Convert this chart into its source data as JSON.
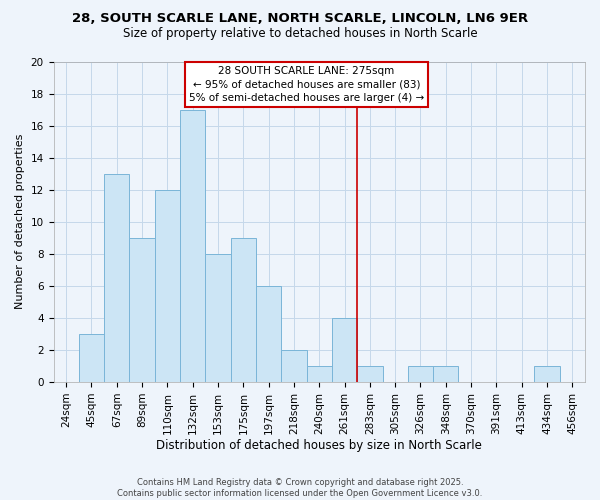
{
  "title_line1": "28, SOUTH SCARLE LANE, NORTH SCARLE, LINCOLN, LN6 9ER",
  "title_line2": "Size of property relative to detached houses in North Scarle",
  "xlabel": "Distribution of detached houses by size in North Scarle",
  "ylabel": "Number of detached properties",
  "bin_labels": [
    "24sqm",
    "45sqm",
    "67sqm",
    "89sqm",
    "110sqm",
    "132sqm",
    "153sqm",
    "175sqm",
    "197sqm",
    "218sqm",
    "240sqm",
    "261sqm",
    "283sqm",
    "305sqm",
    "326sqm",
    "348sqm",
    "370sqm",
    "391sqm",
    "413sqm",
    "434sqm",
    "456sqm"
  ],
  "bar_values": [
    0,
    3,
    13,
    9,
    12,
    17,
    8,
    9,
    6,
    2,
    1,
    4,
    1,
    0,
    1,
    1,
    0,
    0,
    0,
    1,
    0
  ],
  "bar_color": "#cce5f5",
  "bar_edge_color": "#7ab5d8",
  "vline_x": 12.0,
  "vline_color": "#cc0000",
  "annotation_text": "28 SOUTH SCARLE LANE: 275sqm\n← 95% of detached houses are smaller (83)\n5% of semi-detached houses are larger (4) →",
  "annotation_box_color": "white",
  "annotation_box_edge_color": "#cc0000",
  "ylim": [
    0,
    20
  ],
  "yticks": [
    0,
    2,
    4,
    6,
    8,
    10,
    12,
    14,
    16,
    18,
    20
  ],
  "footnote": "Contains HM Land Registry data © Crown copyright and database right 2025.\nContains public sector information licensed under the Open Government Licence v3.0.",
  "bg_color": "#eef4fb",
  "grid_color": "#c5d8ea",
  "title_fontsize": 9.5,
  "subtitle_fontsize": 8.5,
  "ylabel_fontsize": 8,
  "xlabel_fontsize": 8.5,
  "tick_fontsize": 7.5,
  "annot_fontsize": 7.5,
  "footnote_fontsize": 6
}
